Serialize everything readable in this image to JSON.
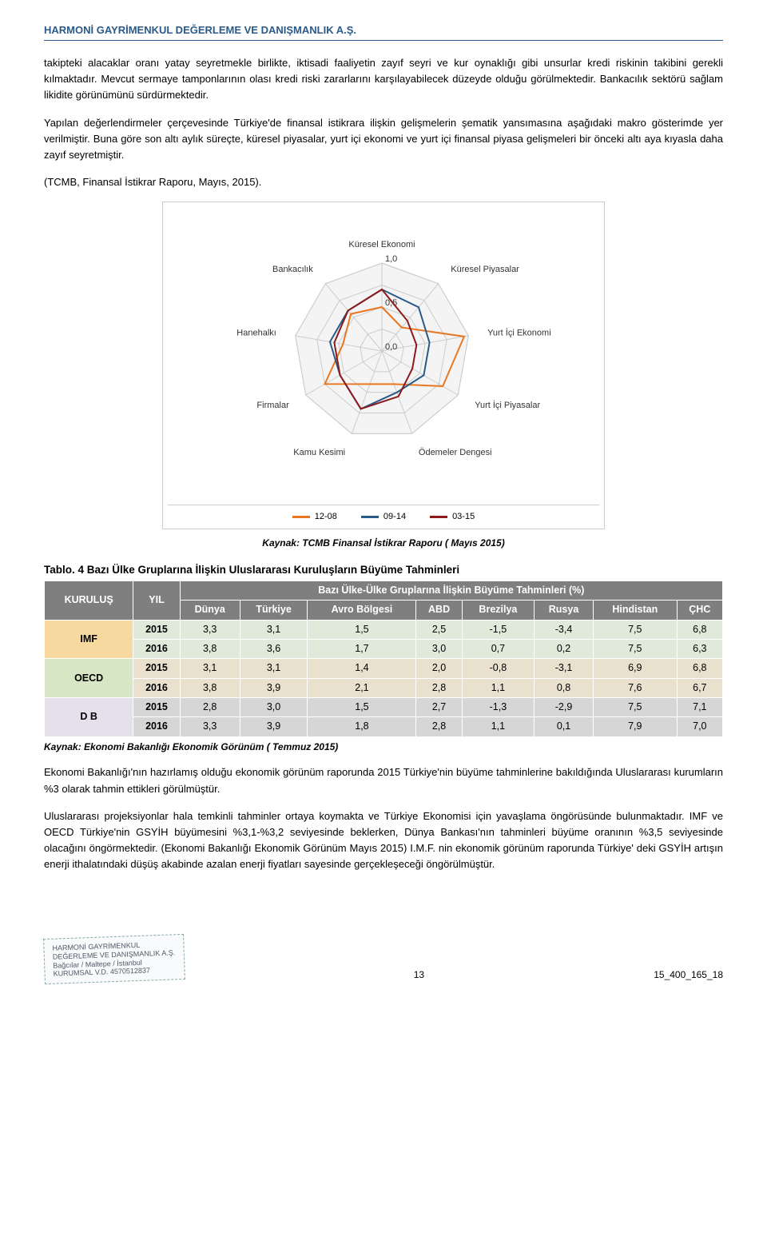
{
  "header": "HARMONİ GAYRİMENKUL DEĞERLEME VE DANIŞMANLIK A.Ş.",
  "para1": "takipteki alacaklar oranı yatay seyretmekle birlikte, iktisadi faaliyetin zayıf seyri ve kur oynaklığı gibi unsurlar kredi riskinin takibini gerekli kılmaktadır. Mevcut sermaye tamponlarının olası kredi riski zararlarını karşılayabilecek düzeyde olduğu görülmektedir. Bankacılık sektörü sağlam likidite görünümünü sürdürmektedir.",
  "para2": "Yapılan değerlendirmeler çerçevesinde Türkiye'de finansal istikrara ilişkin gelişmelerin şematik yansımasına aşağıdaki makro gösterimde yer verilmiştir. Buna göre son altı aylık süreçte, küresel piyasalar, yurt içi ekonomi ve yurt içi finansal piyasa gelişmeleri bir önceki altı aya kıyasla daha zayıf seyretmiştir.",
  "para3": "(TCMB, Finansal İstikrar Raporu, Mayıs, 2015).",
  "radar": {
    "type": "radar",
    "axes": [
      "Küresel Ekonomi",
      "Küresel Piyasalar",
      "Yurt İçi Ekonomi",
      "Yurt İçi Piyasalar",
      "Ödemeler Dengesi",
      "Kamu Kesimi",
      "Firmalar",
      "Hanehalkı",
      "Bankacılık"
    ],
    "ticks": [
      "1,0",
      "0,5",
      "0,0"
    ],
    "series": [
      {
        "name": "12-08",
        "color": "#e87722",
        "values": [
          0.5,
          0.35,
          0.95,
          0.8,
          0.4,
          0.4,
          0.75,
          0.45,
          0.55
        ]
      },
      {
        "name": "09-14",
        "color": "#2a5a8a",
        "values": [
          0.7,
          0.65,
          0.55,
          0.55,
          0.5,
          0.7,
          0.55,
          0.6,
          0.6
        ]
      },
      {
        "name": "03-15",
        "color": "#8b1a1a",
        "values": [
          0.7,
          0.45,
          0.4,
          0.4,
          0.55,
          0.7,
          0.55,
          0.55,
          0.6
        ]
      }
    ],
    "grid_color": "#cccccc",
    "background": "#ffffff",
    "line_width": 2
  },
  "radar_caption": "Kaynak: TCMB Finansal İstikrar Raporu ( Mayıs 2015)",
  "table_title": "Tablo. 4 Bazı Ülke Gruplarına İlişkin Uluslararası Kuruluşların Büyüme Tahminleri",
  "table": {
    "header_band": "Bazı Ülke-Ülke Gruplarına İlişkin Büyüme Tahminleri (%)",
    "col_org": "KURULUŞ",
    "col_year": "YIL",
    "columns": [
      "Dünya",
      "Türkiye",
      "Avro Bölgesi",
      "ABD",
      "Brezilya",
      "Rusya",
      "Hindistan",
      "ÇHC"
    ],
    "orgs": [
      {
        "name": "IMF",
        "color": "#f7d9a0",
        "rows": [
          {
            "year": "2015",
            "bg": "#dfeadb",
            "vals": [
              "3,3",
              "3,1",
              "1,5",
              "2,5",
              "-1,5",
              "-3,4",
              "7,5",
              "6,8"
            ]
          },
          {
            "year": "2016",
            "bg": "#dfeadb",
            "vals": [
              "3,8",
              "3,6",
              "1,7",
              "3,0",
              "0,7",
              "0,2",
              "7,5",
              "6,3"
            ]
          }
        ]
      },
      {
        "name": "OECD",
        "color": "#d7e6c4",
        "rows": [
          {
            "year": "2015",
            "bg": "#e9e0ce",
            "vals": [
              "3,1",
              "3,1",
              "1,4",
              "2,0",
              "-0,8",
              "-3,1",
              "6,9",
              "6,8"
            ]
          },
          {
            "year": "2016",
            "bg": "#e9e0ce",
            "vals": [
              "3,8",
              "3,9",
              "2,1",
              "2,8",
              "1,1",
              "0,8",
              "7,6",
              "6,7"
            ]
          }
        ]
      },
      {
        "name": "D B",
        "color": "#e6e0ec",
        "rows": [
          {
            "year": "2015",
            "bg": "#d6d6d6",
            "vals": [
              "2,8",
              "3,0",
              "1,5",
              "2,7",
              "-1,3",
              "-2,9",
              "7,5",
              "7,1"
            ]
          },
          {
            "year": "2016",
            "bg": "#d6d6d6",
            "vals": [
              "3,3",
              "3,9",
              "1,8",
              "2,8",
              "1,1",
              "0,1",
              "7,9",
              "7,0"
            ]
          }
        ]
      }
    ]
  },
  "table_source": "Kaynak: Ekonomi Bakanlığı Ekonomik Görünüm ( Temmuz 2015)",
  "para4": "Ekonomi Bakanlığı'nın hazırlamış olduğu ekonomik görünüm raporunda 2015 Türkiye'nin büyüme tahminlerine bakıldığında Uluslararası kurumların %3 olarak tahmin ettikleri görülmüştür.",
  "para5": "Uluslararası projeksiyonlar hala temkinli tahminler ortaya koymakta ve Türkiye Ekonomisi için yavaşlama öngörüsünde bulunmaktadır. IMF ve OECD Türkiye'nin GSYİH büyümesini %3,1-%3,2 seviyesinde beklerken, Dünya Bankası'nın tahminleri büyüme oranının %3,5 seviyesinde olacağını öngörmektedir. (Ekonomi Bakanlığı Ekonomik Görünüm Mayıs 2015) I.M.F. nin ekonomik görünüm raporunda Türkiye' deki GSYİH artışın enerji ithalatındaki düşüş akabinde azalan enerji fiyatları sayesinde gerçekleşeceği öngörülmüştür.",
  "footer": {
    "stamp_lines": [
      "HARMONİ GAYRİMENKUL",
      "DEĞERLEME VE DANIŞMANLIK A.Ş.",
      "Bağcılar / Maltepe / İstanbul",
      "KURUMSAL V.D. 4570512837"
    ],
    "page_num": "13",
    "doc_ref": "15_400_165_18"
  }
}
